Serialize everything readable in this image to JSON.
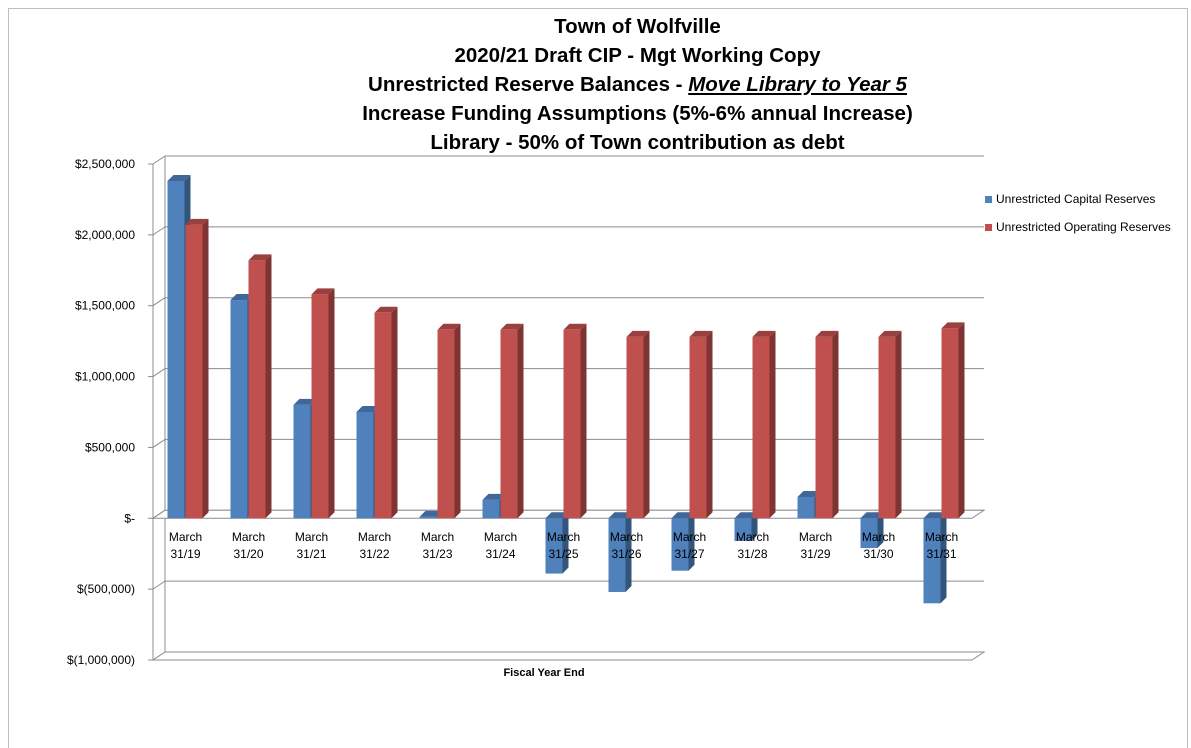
{
  "chart_data": {
    "type": "bar",
    "title_lines": [
      "Town of Wolfville",
      "2020/21 Draft CIP  - Mgt Working Copy",
      "Increase Funding Assumptions (5%-6% annual Increase)",
      "Library - 50% of Town contribution as debt"
    ],
    "title_line3_prefix": "Unrestricted Reserve Balances - ",
    "title_line3_emphasis": "Move Library to Year 5",
    "xlabel": "Fiscal Year End",
    "ylabel": "",
    "categories": [
      "March 31/19",
      "March 31/20",
      "March 31/21",
      "March 31/22",
      "March 31/23",
      "March 31/24",
      "March 31/25",
      "March 31/26",
      "March 31/27",
      "March 31/28",
      "March 31/29",
      "March 31/30",
      "March 31/31"
    ],
    "category_lines": [
      [
        "March",
        "31/19"
      ],
      [
        "March",
        "31/20"
      ],
      [
        "March",
        "31/21"
      ],
      [
        "March",
        "31/22"
      ],
      [
        "March",
        "31/23"
      ],
      [
        "March",
        "31/24"
      ],
      [
        "March",
        "31/25"
      ],
      [
        "March",
        "31/26"
      ],
      [
        "March",
        "31/27"
      ],
      [
        "March",
        "31/28"
      ],
      [
        "March",
        "31/29"
      ],
      [
        "March",
        "31/30"
      ],
      [
        "March",
        "31/31"
      ]
    ],
    "series": [
      {
        "name": "Unrestricted Capital Reserves",
        "color": "#4f81bd",
        "values": [
          2380000,
          1540000,
          800000,
          750000,
          10000,
          130000,
          -390000,
          -520000,
          -370000,
          -160000,
          150000,
          -210000,
          -600000
        ]
      },
      {
        "name": "Unrestricted Operating Reserves",
        "color": "#c0504d",
        "values": [
          2070000,
          1820000,
          1580000,
          1450000,
          1330000,
          1330000,
          1330000,
          1280000,
          1280000,
          1280000,
          1280000,
          1280000,
          1340000
        ]
      }
    ],
    "ylim": [
      -1000000,
      2500000
    ],
    "yticks": [
      2500000,
      2000000,
      1500000,
      1000000,
      500000,
      0,
      -500000,
      -1000000
    ],
    "ytick_labels": [
      "$2,500,000",
      "$2,000,000",
      "$1,500,000",
      "$1,000,000",
      "$500,000",
      "$-",
      "$(500,000)",
      "$(1,000,000)"
    ],
    "grid": true,
    "legend_position": "right"
  }
}
